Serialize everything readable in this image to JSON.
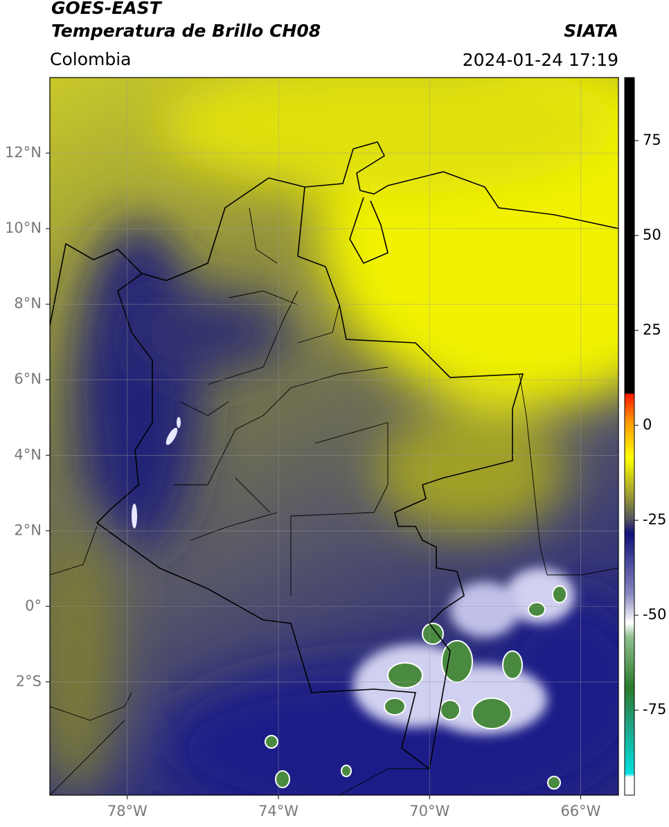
{
  "header": {
    "title_line_1": "GOES-EAST",
    "title_line_2": "Temperatura de Brillo CH08",
    "source": "SIATA",
    "region": "Colombia",
    "timestamp": "2024-01-24 17:19"
  },
  "map": {
    "lon_range": [
      -80.05,
      -65.0
    ],
    "lat_range": [
      14.0,
      -5.0
    ],
    "lat_ticks": [
      {
        "value": 12,
        "label": "12°N"
      },
      {
        "value": 10,
        "label": "10°N"
      },
      {
        "value": 8,
        "label": "8°N"
      },
      {
        "value": 6,
        "label": "6°N"
      },
      {
        "value": 4,
        "label": "4°N"
      },
      {
        "value": 2,
        "label": "2°N"
      },
      {
        "value": 0,
        "label": "0°"
      },
      {
        "value": -2,
        "label": "2°S"
      }
    ],
    "lon_ticks": [
      {
        "value": -78,
        "label": "78°W"
      },
      {
        "value": -74,
        "label": "74°W"
      },
      {
        "value": -70,
        "label": "70°W"
      },
      {
        "value": -66,
        "label": "66°W"
      }
    ]
  },
  "colorbar": {
    "range": [
      91.6,
      -97.4
    ],
    "ticks": [
      75,
      50,
      25,
      0,
      -25,
      -50,
      -75
    ]
  }
}
